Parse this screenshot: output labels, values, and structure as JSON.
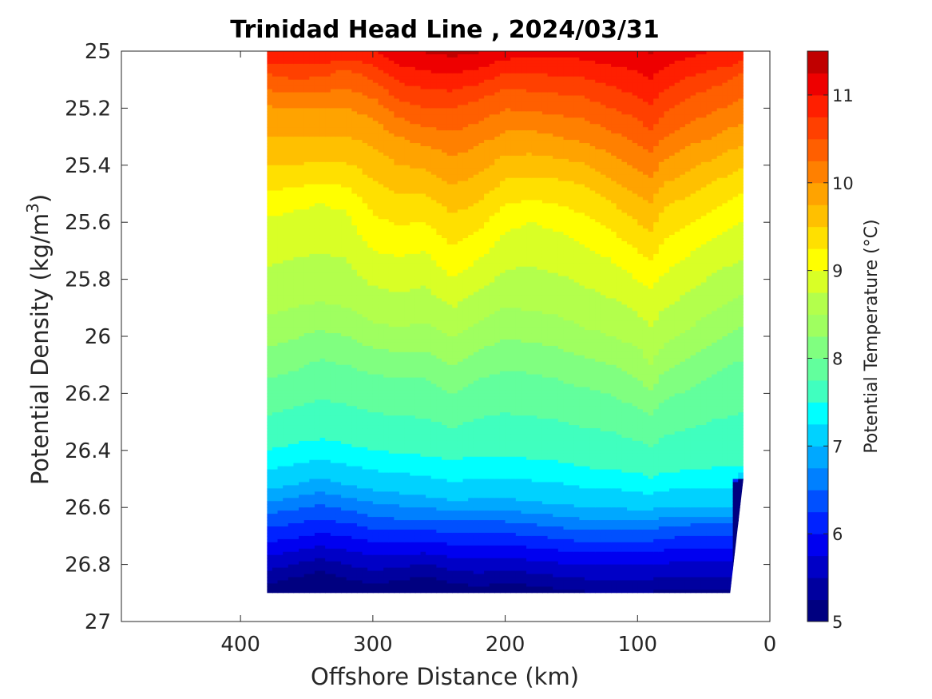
{
  "chart_data": {
    "type": "heatmap",
    "subtype": "filled-contour",
    "title": "Trinidad Head Line , 2024/03/31",
    "xlabel": "Offshore Distance (km)",
    "ylabel_main": "Potential Density (kg/m",
    "ylabel_sup": "3",
    "ylabel_close": ")",
    "xlim": [
      490,
      0
    ],
    "x_reversed": true,
    "ylim": [
      25,
      27
    ],
    "y_reversed": true,
    "x_ticks": [
      400,
      300,
      200,
      100,
      0
    ],
    "x_tick_labels": [
      "400",
      "300",
      "200",
      "100",
      "0"
    ],
    "y_ticks": [
      25,
      25.2,
      25.4,
      25.6,
      25.8,
      26,
      26.2,
      26.4,
      26.6,
      26.8,
      27
    ],
    "y_tick_labels": [
      "25",
      "25.2",
      "25.4",
      "25.6",
      "25.8",
      "26",
      "26.2",
      "26.4",
      "26.6",
      "26.8",
      "27"
    ],
    "x_data_extent": [
      380,
      20
    ],
    "station_x": [
      380,
      360,
      340,
      320,
      300,
      280,
      260,
      240,
      220,
      200,
      180,
      160,
      140,
      120,
      100,
      90,
      80,
      60,
      40,
      30,
      20
    ],
    "bottom_density": [
      26.9,
      26.9,
      26.9,
      26.9,
      26.9,
      26.9,
      26.9,
      26.9,
      26.9,
      26.9,
      26.9,
      26.9,
      26.9,
      26.9,
      26.9,
      26.9,
      26.9,
      26.9,
      26.9,
      26.9,
      26.5
    ],
    "isotherms": [
      {
        "t": 11.0,
        "density": [
          25.0,
          25.0,
          25.0,
          25.0,
          25.0,
          25.05,
          25.07,
          25.08,
          25.06,
          25.03,
          25.02,
          25.02,
          25.03,
          25.05,
          25.07,
          25.1,
          25.06,
          25.02,
          25.0,
          25.0,
          25.0
        ]
      },
      {
        "t": 10.5,
        "density": [
          25.08,
          25.1,
          25.09,
          25.06,
          25.1,
          25.17,
          25.2,
          25.2,
          25.17,
          25.13,
          25.14,
          25.15,
          25.16,
          25.2,
          25.24,
          25.28,
          25.22,
          25.16,
          25.12,
          25.1,
          25.07
        ]
      },
      {
        "t": 10.0,
        "density": [
          25.19,
          25.2,
          25.2,
          25.2,
          25.23,
          25.3,
          25.33,
          25.37,
          25.33,
          25.28,
          25.28,
          25.3,
          25.32,
          25.36,
          25.42,
          25.44,
          25.38,
          25.33,
          25.3,
          25.27,
          25.25
        ]
      },
      {
        "t": 9.5,
        "density": [
          25.4,
          25.4,
          25.39,
          25.39,
          25.45,
          25.5,
          25.5,
          25.57,
          25.53,
          25.45,
          25.44,
          25.45,
          25.47,
          25.53,
          25.6,
          25.63,
          25.55,
          25.5,
          25.45,
          25.43,
          25.4
        ]
      },
      {
        "t": 9.0,
        "density": [
          25.58,
          25.56,
          25.53,
          25.56,
          25.7,
          25.72,
          25.7,
          25.8,
          25.73,
          25.63,
          25.6,
          25.63,
          25.68,
          25.73,
          25.8,
          25.83,
          25.78,
          25.71,
          25.65,
          25.62,
          25.6
        ]
      },
      {
        "t": 8.5,
        "density": [
          25.93,
          25.9,
          25.88,
          25.9,
          25.95,
          25.97,
          25.95,
          26.0,
          25.95,
          25.9,
          25.91,
          25.93,
          25.97,
          26.0,
          26.04,
          26.1,
          26.03,
          25.97,
          25.9,
          25.88,
          25.85
        ]
      },
      {
        "t": 8.0,
        "density": [
          26.15,
          26.12,
          26.08,
          26.1,
          26.13,
          26.15,
          26.15,
          26.2,
          26.15,
          26.12,
          26.13,
          26.15,
          26.18,
          26.2,
          26.25,
          26.28,
          26.22,
          26.18,
          26.12,
          26.1,
          26.08
        ]
      },
      {
        "t": 7.5,
        "density": [
          26.4,
          26.38,
          26.36,
          26.38,
          26.4,
          26.41,
          26.42,
          26.44,
          26.42,
          26.42,
          26.43,
          26.44,
          26.46,
          26.47,
          26.48,
          26.5,
          26.48,
          26.47,
          26.46,
          26.46,
          26.46
        ]
      },
      {
        "t": 7.0,
        "density": [
          26.54,
          26.52,
          26.5,
          26.52,
          26.54,
          26.55,
          26.56,
          26.58,
          26.57,
          26.57,
          26.58,
          26.59,
          26.6,
          26.6,
          26.61,
          26.61,
          26.6,
          26.6,
          26.6,
          26.6,
          26.5
        ]
      },
      {
        "t": 6.5,
        "density": [
          26.62,
          26.61,
          26.59,
          26.61,
          26.63,
          26.64,
          26.64,
          26.65,
          26.65,
          26.65,
          26.66,
          26.67,
          26.68,
          26.68,
          26.68,
          26.68,
          26.67,
          26.66,
          26.66,
          26.66,
          26.5
        ]
      },
      {
        "t": 6.0,
        "density": [
          26.72,
          26.71,
          26.69,
          26.7,
          26.72,
          26.72,
          26.72,
          26.73,
          26.73,
          26.73,
          26.74,
          26.75,
          26.76,
          26.76,
          26.76,
          26.76,
          26.75,
          26.74,
          26.74,
          26.74,
          26.5
        ]
      },
      {
        "t": 5.5,
        "density": [
          26.82,
          26.8,
          26.78,
          26.8,
          26.82,
          26.81,
          26.8,
          26.82,
          26.83,
          26.82,
          26.83,
          26.84,
          26.85,
          26.85,
          26.85,
          26.85,
          26.84,
          26.84,
          26.84,
          26.84,
          26.5
        ]
      }
    ],
    "colorbar": {
      "label": "Potential Temperature (°C)",
      "range": [
        5,
        11.5
      ],
      "ticks": [
        5,
        6,
        7,
        8,
        9,
        10,
        11
      ],
      "tick_labels": [
        "5",
        "6",
        "7",
        "8",
        "9",
        "10",
        "11"
      ],
      "levels": [
        5.0,
        5.25,
        5.5,
        5.75,
        6.0,
        6.25,
        6.5,
        6.75,
        7.0,
        7.25,
        7.5,
        7.75,
        8.0,
        8.25,
        8.5,
        8.75,
        9.0,
        9.25,
        9.5,
        9.75,
        10.0,
        10.25,
        10.5,
        10.75,
        11.0,
        11.25,
        11.5
      ],
      "colors": [
        "#000080",
        "#00009f",
        "#0000c6",
        "#0000f0",
        "#0022ff",
        "#0050ff",
        "#0080ff",
        "#00a8ff",
        "#00d2ff",
        "#00ffff",
        "#40ffbf",
        "#62ff9d",
        "#80ff80",
        "#9fff60",
        "#b3ff4c",
        "#d9ff26",
        "#ffff00",
        "#ffe000",
        "#ffc000",
        "#ffa300",
        "#ff8000",
        "#ff5f00",
        "#ff4000",
        "#ff1f00",
        "#ee0000",
        "#c00000"
      ]
    },
    "grid": false,
    "legend": "colorbar-right"
  }
}
